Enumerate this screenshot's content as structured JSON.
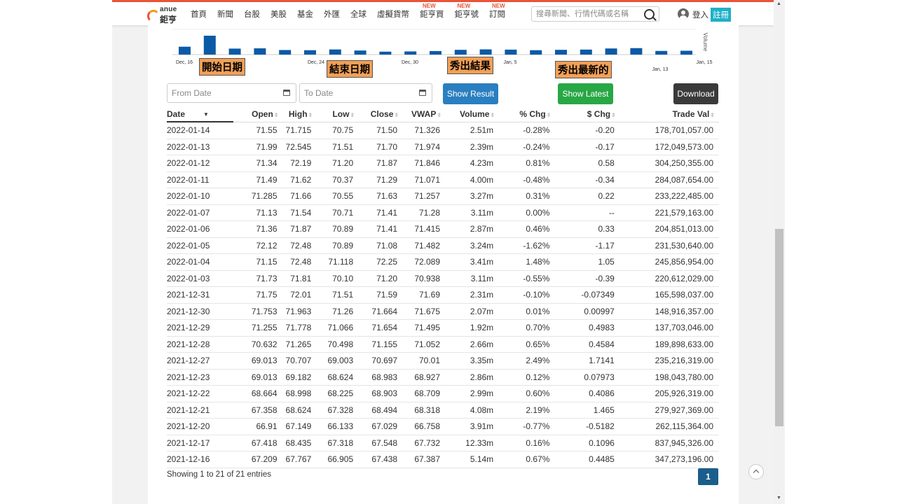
{
  "header": {
    "logo_top": "anue",
    "logo_bottom": "鉅亨",
    "nav": [
      {
        "label": "首頁",
        "new": ""
      },
      {
        "label": "新聞",
        "new": ""
      },
      {
        "label": "台股",
        "new": ""
      },
      {
        "label": "美股",
        "new": ""
      },
      {
        "label": "基金",
        "new": ""
      },
      {
        "label": "外匯",
        "new": ""
      },
      {
        "label": "全球",
        "new": ""
      },
      {
        "label": "虛擬貨幣",
        "new": ""
      },
      {
        "label": "鉅亨買",
        "new": "NEW"
      },
      {
        "label": "鉅亨號",
        "new": "NEW"
      },
      {
        "label": "訂閱",
        "new": "NEW"
      }
    ],
    "search_placeholder": "搜尋新聞、行情代碼或名稱",
    "login": "登入",
    "register": "註冊"
  },
  "chart_data": {
    "type": "bar",
    "title": "",
    "xlabel": "",
    "ylabel": "Volume",
    "x_tick_labels": [
      "Dec, 16",
      "Dec, 24",
      "Dec, 30",
      "Jan, 5",
      "Jan, 13",
      "Jan, 15"
    ],
    "categories": [
      "2021-12-16",
      "2021-12-17",
      "2021-12-20",
      "2021-12-21",
      "2021-12-22",
      "2021-12-23",
      "2021-12-27",
      "2021-12-28",
      "2021-12-29",
      "2021-12-30",
      "2021-12-31",
      "2022-01-03",
      "2022-01-04",
      "2022-01-05",
      "2022-01-06",
      "2022-01-07",
      "2022-01-10",
      "2022-01-11",
      "2022-01-12",
      "2022-01-13",
      "2022-01-14"
    ],
    "values": [
      5.14,
      12.33,
      3.91,
      4.08,
      2.99,
      2.86,
      3.35,
      2.66,
      1.92,
      2.07,
      2.31,
      3.11,
      3.41,
      3.24,
      2.87,
      3.11,
      3.27,
      4.0,
      4.23,
      2.39,
      2.51
    ],
    "bar_color": "#0b5aa5"
  },
  "annotations": {
    "start": "開始日期",
    "end": "結束日期",
    "show_result": "秀出結果",
    "show_latest": "秀出最新的"
  },
  "controls": {
    "from_placeholder": "From Date",
    "to_placeholder": "To Date",
    "show_result": "Show Result",
    "show_latest": "Show Latest",
    "download": "Download"
  },
  "colors": {
    "show_result": "#2a7fc0",
    "show_latest": "#28a745",
    "download": "#3a3a3a",
    "accent": "#e8553a"
  },
  "table": {
    "headers": [
      "Date",
      "Open",
      "High",
      "Low",
      "Close",
      "VWAP",
      "Volume",
      "% Chg",
      "$ Chg",
      "Trade Val"
    ],
    "rows": [
      [
        "2022-01-14",
        "71.55",
        "71.715",
        "70.75",
        "71.50",
        "71.326",
        "2.51m",
        "-0.28%",
        "-0.20",
        "178,701,057.00"
      ],
      [
        "2022-01-13",
        "71.99",
        "72.545",
        "71.51",
        "71.70",
        "71.974",
        "2.39m",
        "-0.24%",
        "-0.17",
        "172,049,573.00"
      ],
      [
        "2022-01-12",
        "71.34",
        "72.19",
        "71.20",
        "71.87",
        "71.846",
        "4.23m",
        "0.81%",
        "0.58",
        "304,250,355.00"
      ],
      [
        "2022-01-11",
        "71.49",
        "71.62",
        "70.37",
        "71.29",
        "71.071",
        "4.00m",
        "-0.48%",
        "-0.34",
        "284,087,654.00"
      ],
      [
        "2022-01-10",
        "71.285",
        "71.66",
        "70.55",
        "71.63",
        "71.257",
        "3.27m",
        "0.31%",
        "0.22",
        "233,222,485.00"
      ],
      [
        "2022-01-07",
        "71.13",
        "71.54",
        "70.71",
        "71.41",
        "71.28",
        "3.11m",
        "0.00%",
        "--",
        "221,579,163.00"
      ],
      [
        "2022-01-06",
        "71.36",
        "71.87",
        "70.89",
        "71.41",
        "71.415",
        "2.87m",
        "0.46%",
        "0.33",
        "204,851,013.00"
      ],
      [
        "2022-01-05",
        "72.12",
        "72.48",
        "70.89",
        "71.08",
        "71.482",
        "3.24m",
        "-1.62%",
        "-1.17",
        "231,530,640.00"
      ],
      [
        "2022-01-04",
        "71.15",
        "72.48",
        "71.118",
        "72.25",
        "72.089",
        "3.41m",
        "1.48%",
        "1.05",
        "245,856,954.00"
      ],
      [
        "2022-01-03",
        "71.73",
        "71.81",
        "70.10",
        "71.20",
        "70.938",
        "3.11m",
        "-0.55%",
        "-0.39",
        "220,612,029.00"
      ],
      [
        "2021-12-31",
        "71.75",
        "72.01",
        "71.51",
        "71.59",
        "71.69",
        "2.31m",
        "-0.10%",
        "-0.07349",
        "165,598,037.00"
      ],
      [
        "2021-12-30",
        "71.753",
        "71.963",
        "71.26",
        "71.664",
        "71.675",
        "2.07m",
        "0.01%",
        "0.00997",
        "148,916,357.00"
      ],
      [
        "2021-12-29",
        "71.255",
        "71.778",
        "71.066",
        "71.654",
        "71.495",
        "1.92m",
        "0.70%",
        "0.4983",
        "137,703,046.00"
      ],
      [
        "2021-12-28",
        "70.632",
        "71.265",
        "70.498",
        "71.155",
        "71.052",
        "2.66m",
        "0.65%",
        "0.4584",
        "189,898,633.00"
      ],
      [
        "2021-12-27",
        "69.013",
        "70.707",
        "69.003",
        "70.697",
        "70.01",
        "3.35m",
        "2.49%",
        "1.7141",
        "235,216,319.00"
      ],
      [
        "2021-12-23",
        "69.013",
        "69.182",
        "68.624",
        "68.983",
        "68.927",
        "2.86m",
        "0.12%",
        "0.07973",
        "198,043,780.00"
      ],
      [
        "2021-12-22",
        "68.664",
        "68.998",
        "68.225",
        "68.903",
        "68.709",
        "2.99m",
        "0.60%",
        "0.4086",
        "205,926,319.00"
      ],
      [
        "2021-12-21",
        "67.358",
        "68.624",
        "67.328",
        "68.494",
        "68.318",
        "4.08m",
        "2.19%",
        "1.465",
        "279,927,369.00"
      ],
      [
        "2021-12-20",
        "66.91",
        "67.149",
        "66.133",
        "67.029",
        "66.758",
        "3.91m",
        "-0.77%",
        "-0.5182",
        "262,115,364.00"
      ],
      [
        "2021-12-17",
        "67.418",
        "68.435",
        "67.318",
        "67.548",
        "67.732",
        "12.33m",
        "0.16%",
        "0.1096",
        "837,945,326.00"
      ],
      [
        "2021-12-16",
        "67.209",
        "67.767",
        "66.905",
        "67.438",
        "67.387",
        "5.14m",
        "0.67%",
        "0.4485",
        "347,273,196.00"
      ]
    ]
  },
  "footer": {
    "showing": "Showing 1 to 21 of 21 entries",
    "page": "1"
  }
}
